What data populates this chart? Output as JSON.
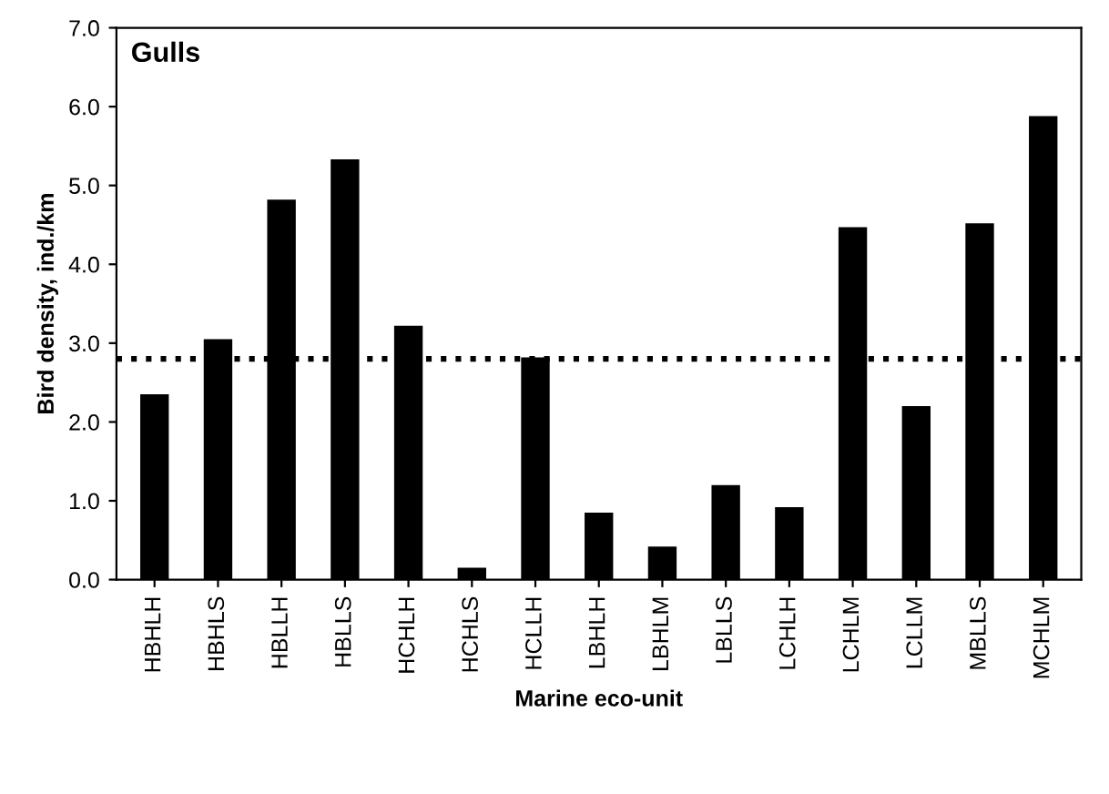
{
  "chart_data": {
    "type": "bar",
    "title": "Gulls",
    "xlabel": "Marine eco-unit",
    "ylabel": "Bird density, ind./km",
    "categories": [
      "HBHLH",
      "HBHLS",
      "HBLLH",
      "HBLLS",
      "HCHLH",
      "HCHLS",
      "HCLLH",
      "LBHLH",
      "LBHLM",
      "LBLLS",
      "LCHLH",
      "LCHLM",
      "LCLLM",
      "MBLLS",
      "MCHLM"
    ],
    "values": [
      2.35,
      3.05,
      4.82,
      5.33,
      3.22,
      0.15,
      2.82,
      0.85,
      0.42,
      1.2,
      0.92,
      4.47,
      2.2,
      4.52,
      5.88
    ],
    "color": "#000000",
    "ylim": [
      0,
      7
    ],
    "yticks": [
      {
        "value": 0,
        "label": "0.0"
      },
      {
        "value": 1,
        "label": "1.0"
      },
      {
        "value": 2,
        "label": "2.0"
      },
      {
        "value": 3,
        "label": "3.0"
      },
      {
        "value": 4,
        "label": "4.0"
      },
      {
        "value": 5,
        "label": "5.0"
      },
      {
        "value": 6,
        "label": "6.0"
      },
      {
        "value": 7,
        "label": "7.0"
      }
    ],
    "ref_lines": [
      {
        "axis": "y",
        "value": 2.8,
        "color": "#000000",
        "line_style": "dotted"
      }
    ],
    "grid": false
  }
}
